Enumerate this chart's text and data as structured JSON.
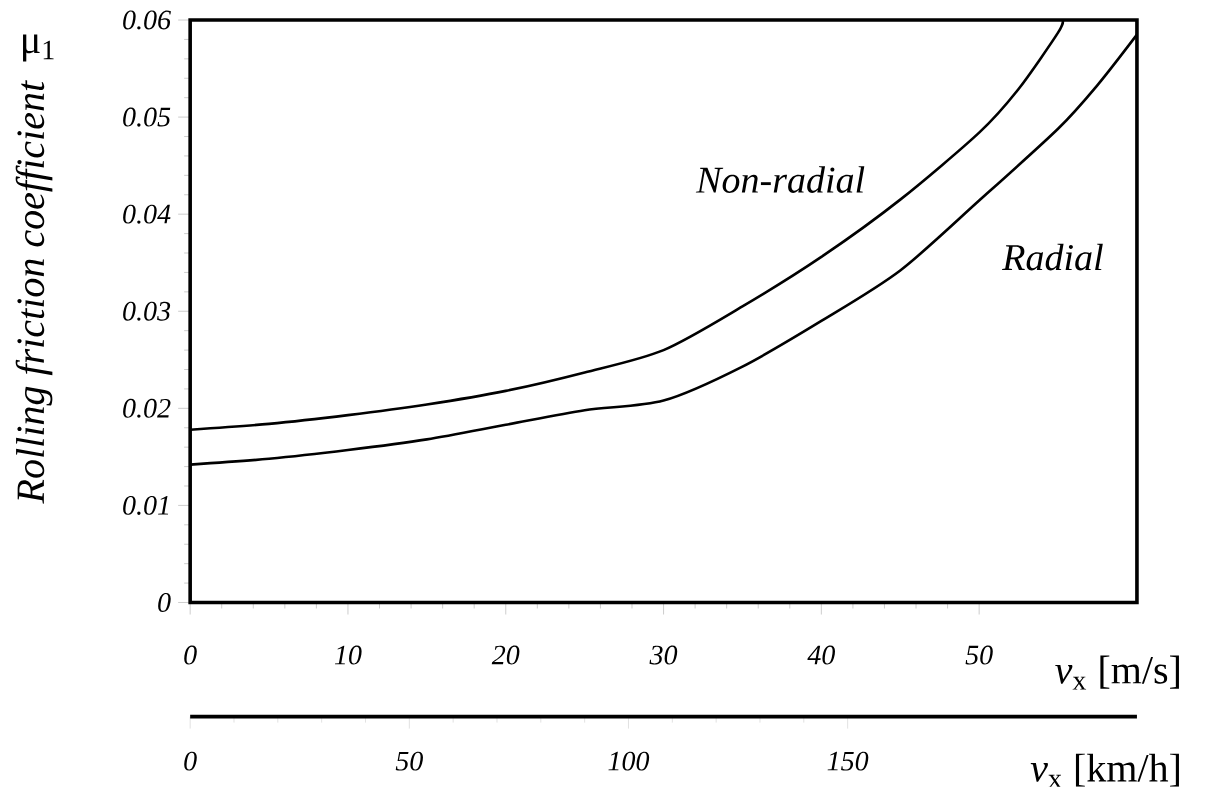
{
  "chart_data": {
    "type": "line",
    "ylabel": "Rolling friction coefficient",
    "xlabel": "*v*$_{x}$ [m/s]",
    "x2label": "*v*$_{x}$ [km/h]",
    "annotations": [
      "μ$_{1}$"
    ],
    "xlim": [
      0,
      60
    ],
    "xticks": [
      0,
      10,
      20,
      30,
      40,
      50
    ],
    "ylim": [
      0,
      0.06
    ],
    "yticks": [
      0,
      0.01,
      0.02,
      0.03,
      0.04,
      0.05,
      0.06
    ],
    "x2lim": [
      0,
      216
    ],
    "x2ticks": [
      0,
      50,
      100,
      150
    ],
    "series": [
      {
        "name": "Non-radial",
        "color": "#000000",
        "x": [
          0,
          5,
          10,
          15,
          20,
          25,
          30,
          35,
          40,
          45,
          50,
          52.5,
          55,
          55.3
        ],
        "values": [
          0.0178,
          0.0184,
          0.0193,
          0.0204,
          0.0218,
          0.0237,
          0.026,
          0.0305,
          0.0356,
          0.0415,
          0.0484,
          0.0529,
          0.0587,
          0.06
        ]
      },
      {
        "name": "Radial",
        "color": "#000000",
        "x": [
          0,
          5,
          10,
          15,
          20,
          25,
          30,
          35,
          40,
          45,
          50,
          55,
          57.5,
          60
        ],
        "values": [
          0.0142,
          0.0148,
          0.0157,
          0.0168,
          0.0183,
          0.0198,
          0.0208,
          0.0243,
          0.029,
          0.0342,
          0.0414,
          0.0488,
          0.0533,
          0.0585
        ]
      }
    ]
  }
}
